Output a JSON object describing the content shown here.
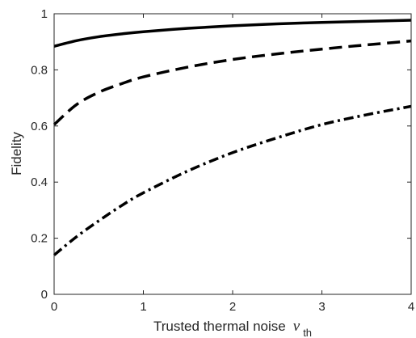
{
  "chart_data": {
    "type": "line",
    "title": "",
    "xlabel": "Trusted thermal noise",
    "xlabel_symbol": "ν",
    "xlabel_subscript": "th",
    "ylabel": "Fidelity",
    "xlim": [
      0,
      4
    ],
    "ylim": [
      0,
      1
    ],
    "xticks": [
      0,
      1,
      2,
      3,
      4
    ],
    "yticks": [
      0,
      0.2,
      0.4,
      0.6,
      0.8,
      1
    ],
    "xtick_labels": [
      "0",
      "1",
      "2",
      "3",
      "4"
    ],
    "ytick_labels": [
      "0",
      "0.2",
      "0.4",
      "0.6",
      "0.8",
      "1"
    ],
    "grid": false,
    "series": [
      {
        "style": "solid",
        "color": "#000000",
        "x": [
          0,
          0.25,
          0.5,
          0.75,
          1,
          1.5,
          2,
          2.5,
          3,
          3.5,
          4
        ],
        "y": [
          0.884,
          0.904,
          0.918,
          0.928,
          0.936,
          0.948,
          0.957,
          0.964,
          0.969,
          0.973,
          0.977
        ]
      },
      {
        "style": "dashed",
        "color": "#000000",
        "x": [
          0,
          0.25,
          0.5,
          0.75,
          1,
          1.5,
          2,
          2.5,
          3,
          3.5,
          4
        ],
        "y": [
          0.605,
          0.676,
          0.72,
          0.75,
          0.775,
          0.81,
          0.837,
          0.857,
          0.874,
          0.889,
          0.903
        ]
      },
      {
        "style": "dashdot",
        "color": "#000000",
        "x": [
          0,
          0.25,
          0.5,
          0.75,
          1,
          1.5,
          2,
          2.5,
          3,
          3.5,
          4
        ],
        "y": [
          0.14,
          0.205,
          0.262,
          0.315,
          0.362,
          0.44,
          0.505,
          0.558,
          0.605,
          0.64,
          0.67
        ]
      }
    ]
  }
}
